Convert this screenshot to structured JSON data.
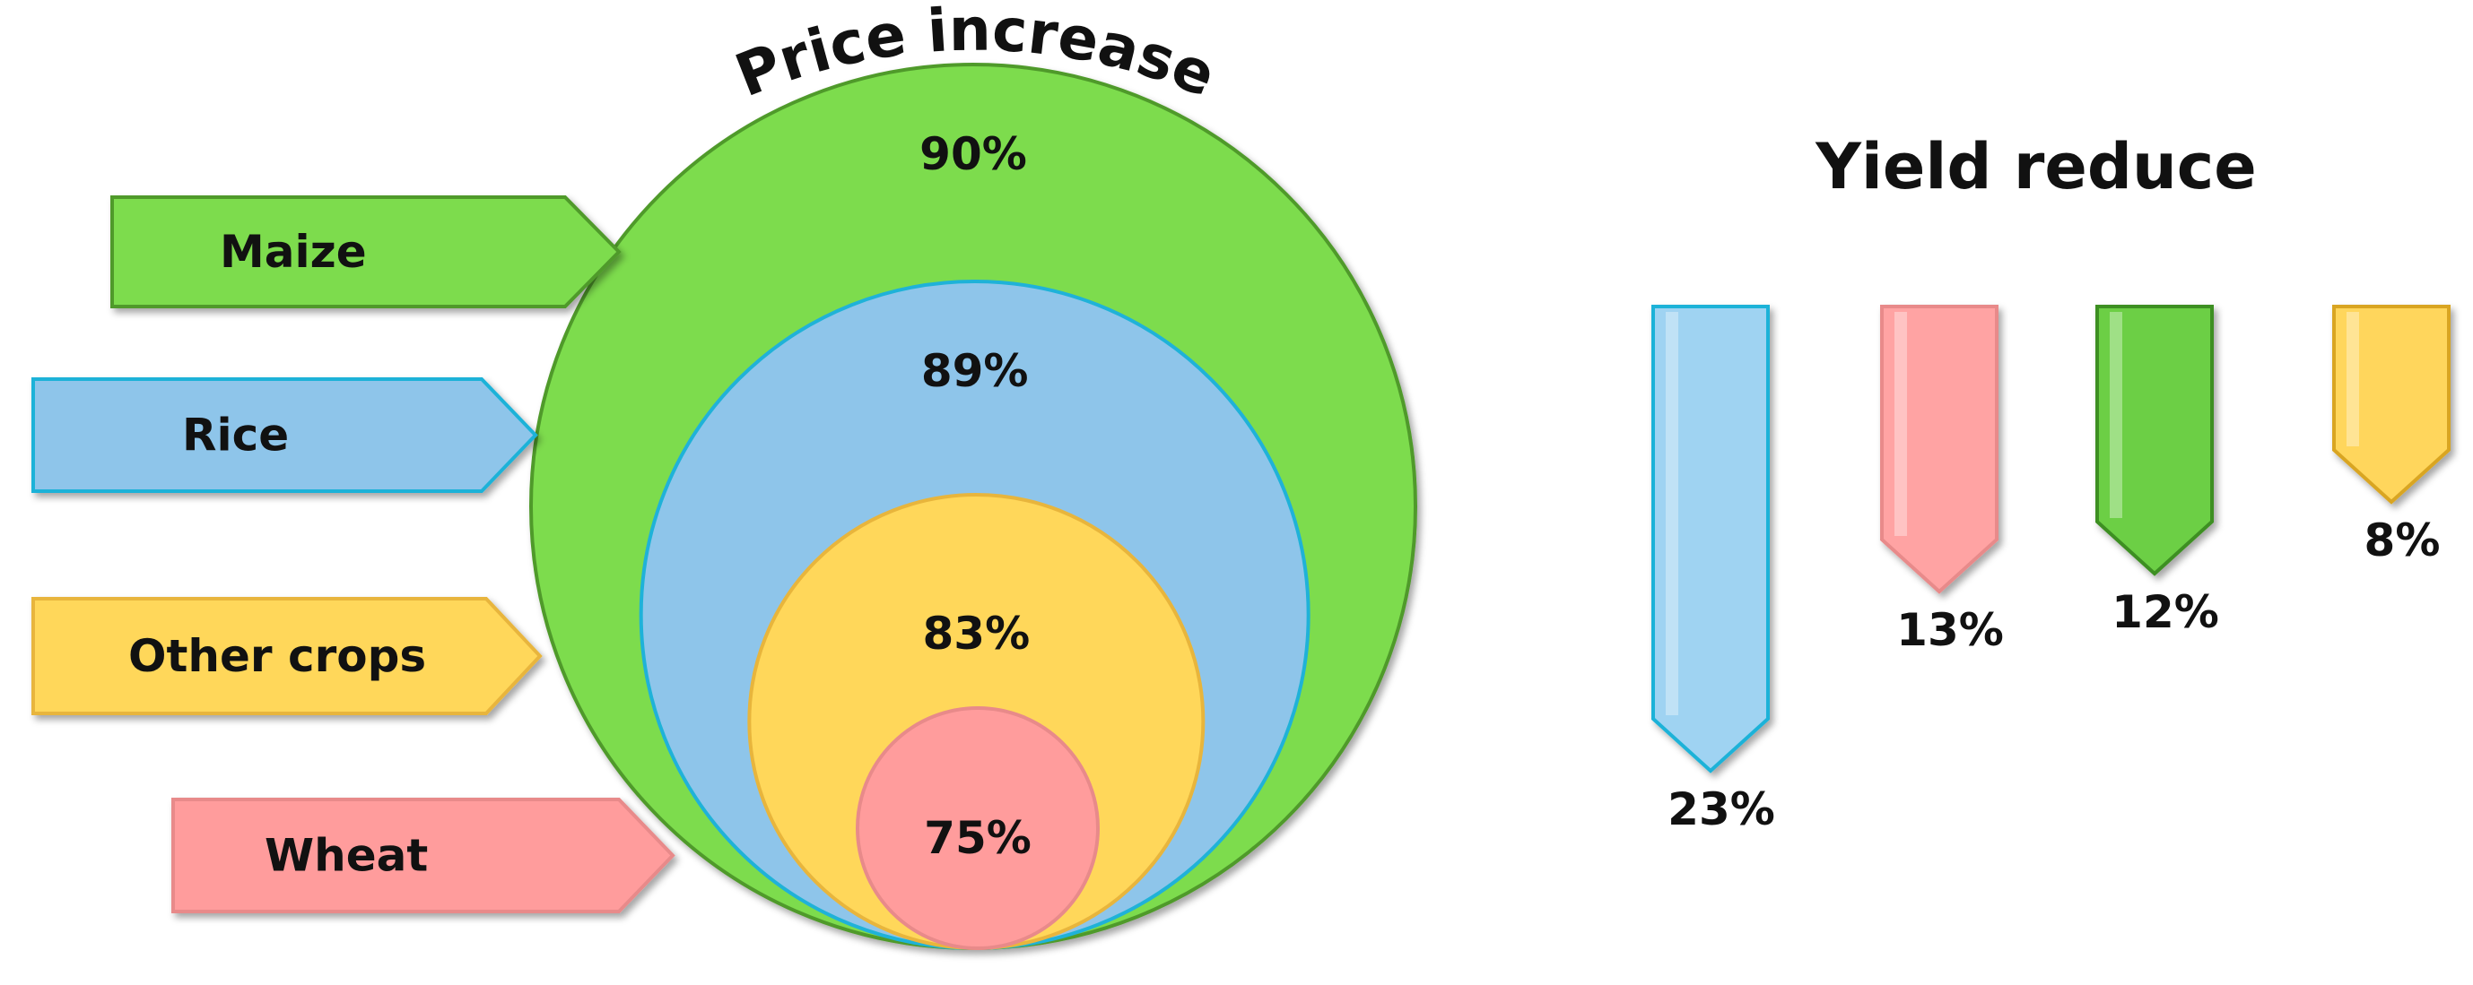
{
  "chart_data": [
    {
      "type": "nested-circle",
      "title": "Price increase",
      "unit": "%",
      "categories": [
        "Maize",
        "Rice",
        "Other crops",
        "Wheat"
      ],
      "values": [
        90,
        89,
        83,
        75
      ],
      "value_labels": [
        "90%",
        "89%",
        "83%",
        "75%"
      ],
      "colors": [
        "#7ddc4e",
        "#8ec5ea",
        "#ffd75a",
        "#ff9c9c"
      ],
      "edge_colors": [
        "#4f9a2c",
        "#1fb2d8",
        "#e8b53c",
        "#e88a8a"
      ]
    },
    {
      "type": "bar",
      "title": "Yield reduce",
      "unit": "%",
      "series_order": [
        "Rice",
        "Wheat",
        "Maize",
        "Other crops"
      ],
      "values": [
        23,
        13,
        12,
        8
      ],
      "value_labels": [
        "23%",
        "13%",
        "12%",
        "8%"
      ],
      "colors": [
        "#9fd3f2",
        "#ffa3a3",
        "#6ccf45",
        "#ffd65c"
      ],
      "edge_colors": [
        "#1fb2d8",
        "#e88a8a",
        "#3e8f24",
        "#d9a520"
      ]
    }
  ]
}
